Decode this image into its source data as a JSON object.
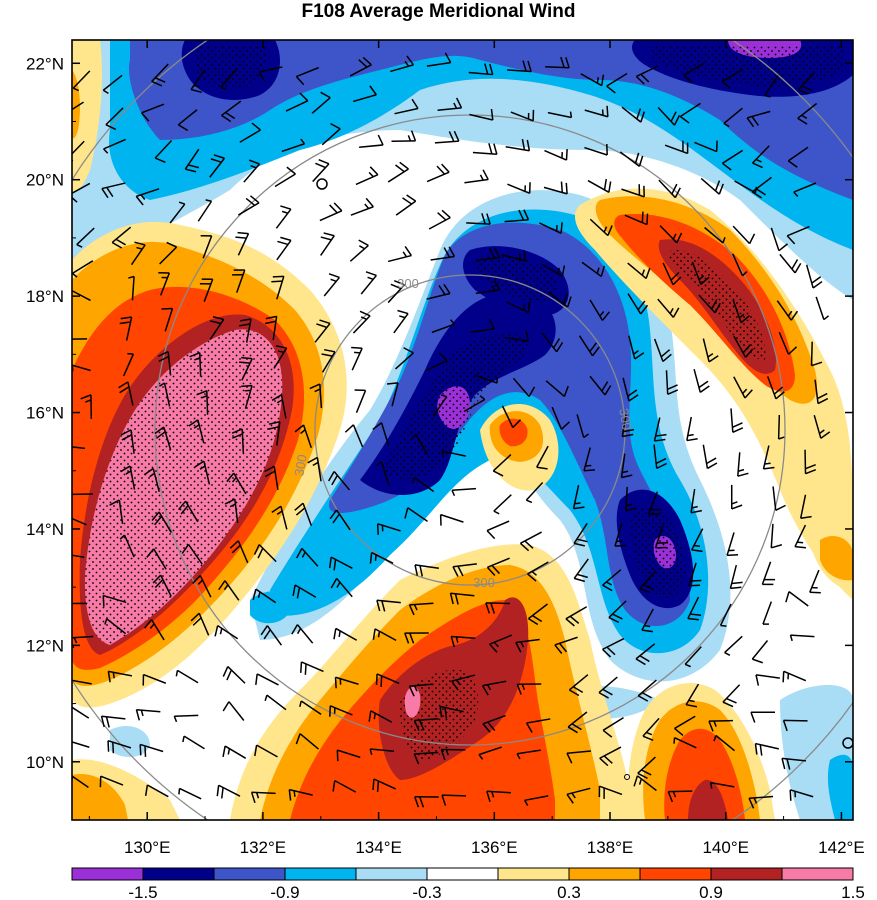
{
  "chart_data": {
    "type": "heatmap",
    "title": "F108 Average Meridional Wind",
    "x_ticks": [
      "130°E",
      "132°E",
      "134°E",
      "136°E",
      "138°E",
      "140°E",
      "142°E"
    ],
    "y_ticks": [
      "22°N",
      "20°N",
      "18°N",
      "16°N",
      "14°N",
      "12°N",
      "10°N"
    ],
    "xlim": [
      128.7,
      142.2
    ],
    "ylim": [
      9.0,
      22.4
    ],
    "levels": [
      -1.8,
      -1.5,
      -1.2,
      -0.9,
      -0.6,
      -0.3,
      0.3,
      0.6,
      0.9,
      1.2,
      1.5,
      1.8
    ],
    "colorbar_labels": [
      "-1.5",
      "-0.9",
      "-0.3",
      "0.3",
      "0.9",
      "1.5"
    ],
    "colors": [
      "#9b30d9",
      "#00008b",
      "#3d55c8",
      "#00b4f0",
      "#a9dcf5",
      "#ffffff",
      "#ffe68c",
      "#ffa500",
      "#ff4500",
      "#b22222",
      "#f87aa7"
    ],
    "range_ring_label": "300",
    "range_rings": [
      {
        "lon": 135.7,
        "lat": 15.4,
        "label": "300"
      }
    ],
    "blobs": [
      {
        "sign": "positive",
        "lon": 130.5,
        "lat": 15.2,
        "peak": ">1.8",
        "desc": "large pink maximum"
      },
      {
        "sign": "positive",
        "lon": 139.4,
        "lat": 17.8,
        "peak": "1.5"
      },
      {
        "sign": "positive",
        "lon": 135.2,
        "lat": 10.8,
        "peak": "1.8"
      },
      {
        "sign": "positive",
        "lon": 140.0,
        "lat": 10.0,
        "peak": "1.2"
      },
      {
        "sign": "positive",
        "lon": 136.2,
        "lat": 15.3,
        "peak": "0.9"
      },
      {
        "sign": "negative",
        "lon": 134.8,
        "lat": 16.3,
        "peak": "-1.8"
      },
      {
        "sign": "negative",
        "lon": 139.0,
        "lat": 13.5,
        "peak": "-1.8"
      },
      {
        "sign": "negative",
        "lon": 131.8,
        "lat": 22.0,
        "peak": "-1.5"
      },
      {
        "sign": "negative",
        "lon": 139.8,
        "lat": 22.1,
        "peak": "-1.8"
      }
    ]
  }
}
